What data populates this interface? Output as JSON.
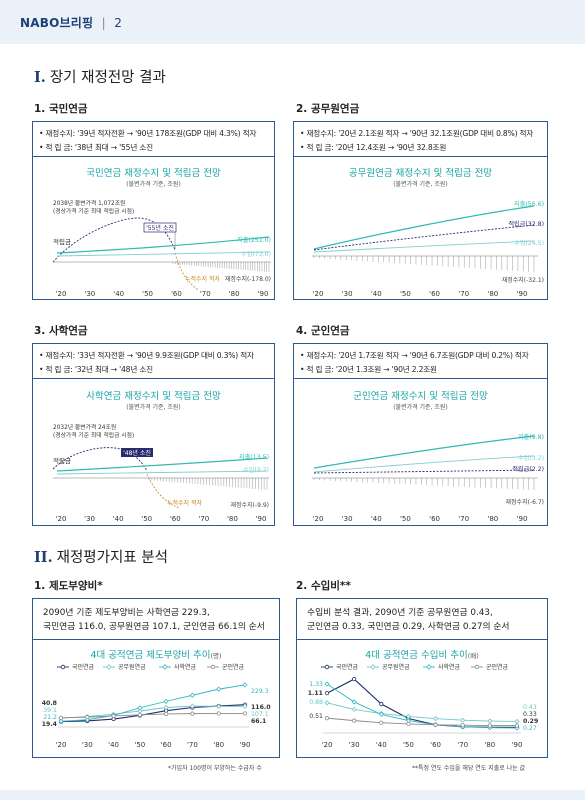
{
  "header": {
    "title": "NABO브리핑",
    "sep": "|",
    "page": "2"
  },
  "section1": {
    "numeral": "I.",
    "title": "장기 재정전망 결과"
  },
  "section2": {
    "numeral": "II.",
    "title": "재정평가지표 분석"
  },
  "colors": {
    "outflow": "#2fb9b3",
    "inflow": "#7fcfd2",
    "reserve": "#2a2a6e",
    "accum": "#c28a1e",
    "frame": "#2d5a8e",
    "title": "#18a3a8"
  },
  "panels": [
    {
      "sub": "1. 국민연금",
      "bullet1": "• 재정수지: '39년 적자전환 → '90년 178조원(GDP 대비 4.3%) 적자",
      "bullet2": "• 적  립  금: '38년 최대 → '55년 소진",
      "chart_title": "국민연금 재정수지 및 적립금 전망",
      "chart_sub": "(불변가격 기준, 조원)",
      "annotation_line1": "2038년 불변가격 1,072조원",
      "annotation_line2": "(경상가격 기준 최대 적립금 시점)",
      "exhaust_label": "'55년 소진",
      "reserve_label": "적립금",
      "accum_label": "누적수지 적자",
      "outflow_label": "지출(251.0)",
      "inflow_label": "수입(73.0)",
      "balance_label": "재정수지(-178.0)"
    },
    {
      "sub": "2. 공무원연금",
      "bullet1": "• 재정수지: '20년 2.1조원 적자 → '90년 32.1조원(GDP 대비 0.8%) 적자",
      "bullet2": "• 적  립  금: '20년 12.4조원 → '90년 32.8조원",
      "chart_title": "공무원연금 재정수지 및 적립금 전망",
      "chart_sub": "(불변가격 기준, 조원)",
      "outflow_label": "지출(56.6)",
      "reserve_label": "적립금(32.8)",
      "inflow_label": "수입(24.5)",
      "balance_label": "재정수지(-32.1)"
    },
    {
      "sub": "3. 사학연금",
      "bullet1": "• 재정수지: '33년 적자전환 → '90년 9.9조원(GDP 대비 0.3%) 적자",
      "bullet2": "• 적  립  금: '32년 최대 → '48년 소진",
      "chart_title": "사학연금 재정수지 및 적립금 전망",
      "chart_sub": "(불변가격 기준, 조원)",
      "annotation_line1": "2032년 불변가격 24조원",
      "annotation_line2": "(경상가격 기준 최대 적립금 시점)",
      "exhaust_label": "'48년 소진",
      "reserve_label": "적립금",
      "accum_label": "누적수지 적자",
      "outflow_label": "지출(13.5)",
      "inflow_label": "수입(3.7)",
      "balance_label": "재정수지(-9.9)"
    },
    {
      "sub": "4. 군인연금",
      "bullet1": "• 재정수지: '20년 1.7조원 적자 → '90년 6.7조원(GDP 대비 0.2%) 적자",
      "bullet2": "• 적  립  금: '20년 1.3조원 → '90년 2.2조원",
      "chart_title": "군인연금 재정수지 및 적립금 전망",
      "chart_sub": "(불변가격 기준, 조원)",
      "outflow_label": "지출(9.8)",
      "inflow_label": "수입(3.2)",
      "reserve_label": "적립금(2.2)",
      "balance_label": "재정수지(-6.7)"
    }
  ],
  "index_panels": [
    {
      "sub": "1. 제도부양비*",
      "text_line1": "2090년 기준 제도부양비는 사학연금 229.3,",
      "text_line2": "국민연금 116.0, 공무원연금 107.1, 군인연금 66.1의 순서",
      "chart_title": "4대 공적연금 제도부양비 추이",
      "chart_unit": "(명)",
      "footnote": "*가입자 100명이 부양하는 수급자 수"
    },
    {
      "sub": "2. 수입비**",
      "text_line1": "수입비 분석 결과,  2090년 기준 공무원연금 0.43,",
      "text_line2": "군인연금 0.33, 국민연금 0.29, 사학연금 0.27의 순서",
      "chart_title": "4대 공적연금 수입비 추이",
      "chart_unit": "(배)",
      "footnote": "**특정 연도 수입을 해당 연도 지출로 나눈 값"
    }
  ],
  "chart_data": [
    {
      "type": "line",
      "title": "4대 공적연금 제도부양비 추이",
      "x": [
        "'20",
        "'30",
        "'40",
        "'50",
        "'60",
        "'70",
        "'80",
        "'90"
      ],
      "series": [
        {
          "name": "국민연금",
          "color": "#1c2f6b",
          "values": [
            19.4,
            23.0,
            34.0,
            55.0,
            82.0,
            100.0,
            108.0,
            116.0
          ]
        },
        {
          "name": "공무원연금",
          "color": "#6fc6c9",
          "values": [
            39.1,
            48.0,
            62.0,
            80.0,
            100.0,
            108.0,
            106.0,
            107.1
          ]
        },
        {
          "name": "사학연금",
          "color": "#36b7c6",
          "values": [
            21.2,
            30.0,
            55.0,
            98.0,
            135.0,
            170.0,
            205.0,
            229.3
          ]
        },
        {
          "name": "군인연금",
          "color": "#8a8a8a",
          "values": [
            40.8,
            45.0,
            52.0,
            58.0,
            63.0,
            65.0,
            66.0,
            66.1
          ]
        }
      ],
      "start_labels": [
        "40.8",
        "39.1",
        "21.2",
        "19.4"
      ],
      "end_labels": [
        "229.3",
        "116.0",
        "107.1",
        "66.1"
      ]
    },
    {
      "type": "line",
      "title": "4대 공적연금 수입비 추이",
      "x": [
        "'20",
        "'30",
        "'40",
        "'50",
        "'60",
        "'70",
        "'80",
        "'90"
      ],
      "series": [
        {
          "name": "국민연금",
          "color": "#1c2f6b",
          "values": [
            1.11,
            1.45,
            0.85,
            0.5,
            0.35,
            0.3,
            0.29,
            0.29
          ]
        },
        {
          "name": "공무원연금",
          "color": "#6fc6c9",
          "values": [
            0.88,
            0.72,
            0.62,
            0.55,
            0.5,
            0.46,
            0.44,
            0.43
          ]
        },
        {
          "name": "사학연금",
          "color": "#36b7c6",
          "values": [
            1.33,
            0.9,
            0.6,
            0.45,
            0.35,
            0.3,
            0.28,
            0.27
          ]
        },
        {
          "name": "군인연금",
          "color": "#8a8a8a",
          "values": [
            0.51,
            0.45,
            0.4,
            0.37,
            0.35,
            0.34,
            0.33,
            0.33
          ]
        }
      ],
      "start_labels": [
        "1.33",
        "1.11",
        "0.88",
        "0.51"
      ],
      "end_labels": [
        "0.43",
        "0.33",
        "0.29",
        "0.27"
      ]
    }
  ],
  "axis_years": [
    "'20",
    "'30",
    "'40",
    "'50",
    "'60",
    "'70",
    "'80",
    "'90"
  ]
}
